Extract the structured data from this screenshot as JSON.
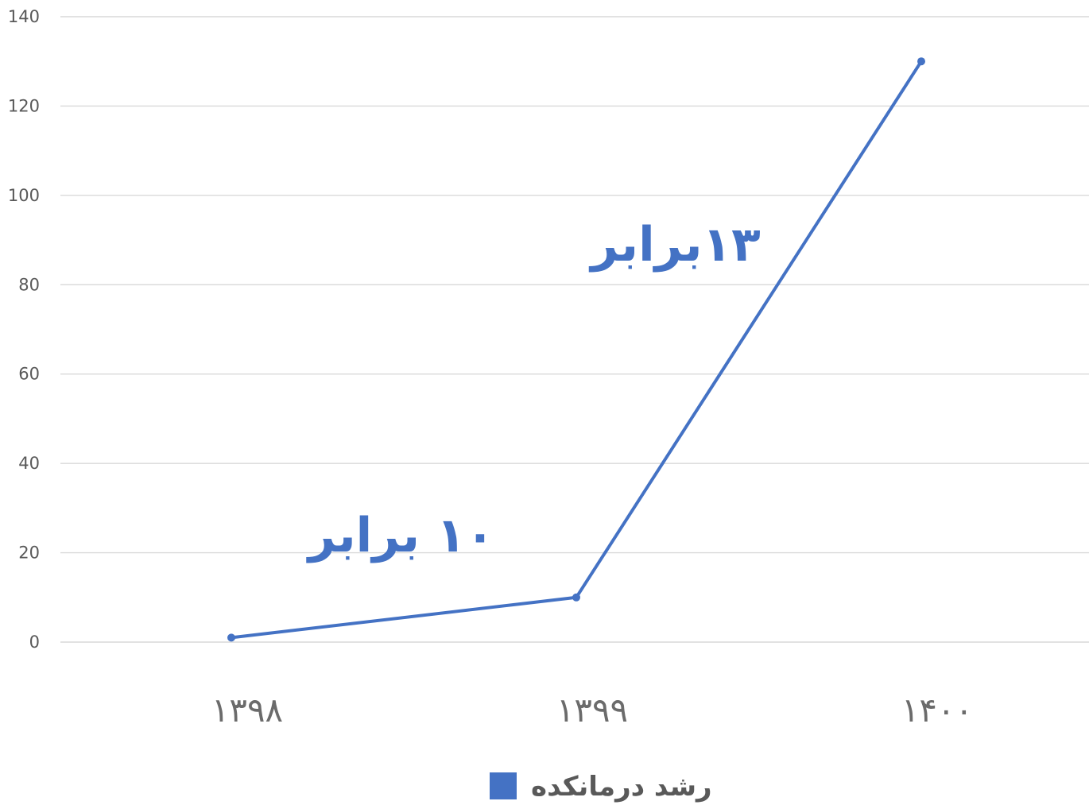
{
  "chart_data": {
    "type": "line",
    "categories": [
      "۱۳۹۸",
      "۱۳۹۹",
      "۱۴۰۰"
    ],
    "series": [
      {
        "name": "رشد درمانکده",
        "values": [
          1,
          10,
          130
        ],
        "color": "#4472c4"
      }
    ],
    "ylim": [
      0,
      140
    ],
    "yticks": [
      0,
      20,
      40,
      60,
      80,
      100,
      120,
      140
    ],
    "grid": true,
    "legend": "bottom",
    "annotations": [
      {
        "text": "۱۰ برابر",
        "segment": "۱۳۹۸-۱۳۹۹"
      },
      {
        "text": "۱۳برابر",
        "segment": "۱۳۹۹-۱۴۰۰"
      }
    ]
  }
}
